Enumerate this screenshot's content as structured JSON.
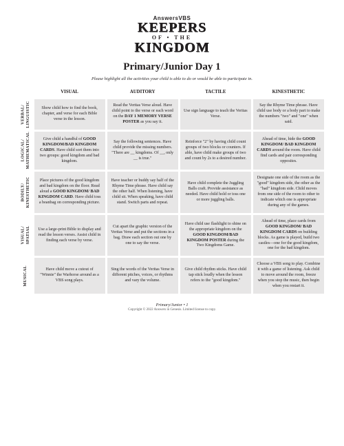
{
  "logo": {
    "line1": "AnswersVBS",
    "line2": "KEEPERS",
    "line3": "OF • THE",
    "line4": "KINGDOM"
  },
  "title": "Primary/Junior Day 1",
  "instruction": "Please highlight all the activities your child is able to do or would be able to participate in.",
  "columns": [
    "VISUAL",
    "AUDITORY",
    "TACTILE",
    "KINESTHETIC"
  ],
  "rows": [
    {
      "label": "VERBAL/\nLINGUISTIC",
      "cells": [
        "Show child how to find the book, chapter, and verse for each Bible verse in the lesson.",
        "Read the Veritas Verse aloud. Have child point to the verse or each word on the <strong>DAY 1 MEMORY VERSE POSTER</strong> as you say it.",
        "Use sign language to teach the Veritas Verse.",
        "Say the Rhyme Time phrase. Have child use body or a body part to make the numbers \"two\" and \"one\" when said."
      ]
    },
    {
      "label": "LOGICAL/\nMATHEMATICAL",
      "cells": [
        "Give child a handful of <strong>GOOD KINGDOM/BAD KINGDOM CARDS</strong>. Have child sort them into two groups: good kingdom and bad kingdom.",
        "Say the following sentences. Have child provide the missing numbers. \"There are __ kingdoms. Of __, only __ is true.\"",
        "Reinforce \"2\" by having child count groups of two blocks or counters. If able, have child make groups of two and count by 2s to a desired number.",
        "Ahead of time, hide the <strong>GOOD KINGDOM/ BAD KINGDOM CARDS</strong> around the room. Have child find cards and pair corresponding opposites."
      ]
    },
    {
      "label": "BODILY/\nKINESTHETIC",
      "cells": [
        "Place pictures of the good kingdom and bad kingdom on the floor. Read aloud a <strong>GOOD KINGDOM/ BAD KINGDOM CARD</strong>. Have child toss a beanbag on corresponding picture.",
        "Have teacher or buddy say half of the Rhyme Time phrase. Have child say the other half. When listening, have child sit. When speaking, have child stand. Switch parts and repeat.",
        "Have child complete the Juggling Balls craft. Provide assistance as needed. Have child hold or toss one or more juggling balls.",
        "Designate one side of the room as the \"good\" kingdom side, the other as the \"bad\" kingdom side. Child moves from one side of the room to other to indicate which one is appropriate during any of the games."
      ]
    },
    {
      "label": "VISUAL/\nSPATIAL",
      "cells": [
        "Use a large-print Bible to display and read the lesson verses. Assist child in finding each verse by verse.",
        "Cut apart the graphic version of the Veritas Verse and put the sections in a bag. Draw each section out one by one to say the verse.",
        "Have child use flashlight to shine on the appropriate kingdom on the <strong>GOOD KINGDOM/BAD KINGDOM POSTER</strong> during the Two Kingdoms Game.",
        "Ahead of time, place cards from <strong>GOOD KINGDOM/ BAD KINGDOM CARDS</strong> on building blocks. As game is played, build two castles—one for the good kingdom, one for the bad kingdom."
      ]
    },
    {
      "label": "MUSICAL",
      "cells": [
        "Have child move a cutout of \"Winnie\" the Warhorse around as a VBS song plays.",
        "Sing the words of the Veritas Verse in different pitches, voices, or rhythms and vary the volume.",
        "Give child rhythm sticks. Have child tap stick loudly when the lesson refers to the \"good kingdom.\"",
        "Choose a VBS song to play. Combine it with a game of listening. Ask child to move around the room, freeze when you stop the music, then begin when you restart it."
      ]
    }
  ],
  "footer": {
    "page": "Primary/Junior • 1",
    "copyright": "Copyright © 2022 Answers in Genesis. Limited license to copy."
  },
  "style": {
    "cell_bg": "#e7e6e6",
    "text_color": "#231f20",
    "page_bg": "#ffffff"
  }
}
